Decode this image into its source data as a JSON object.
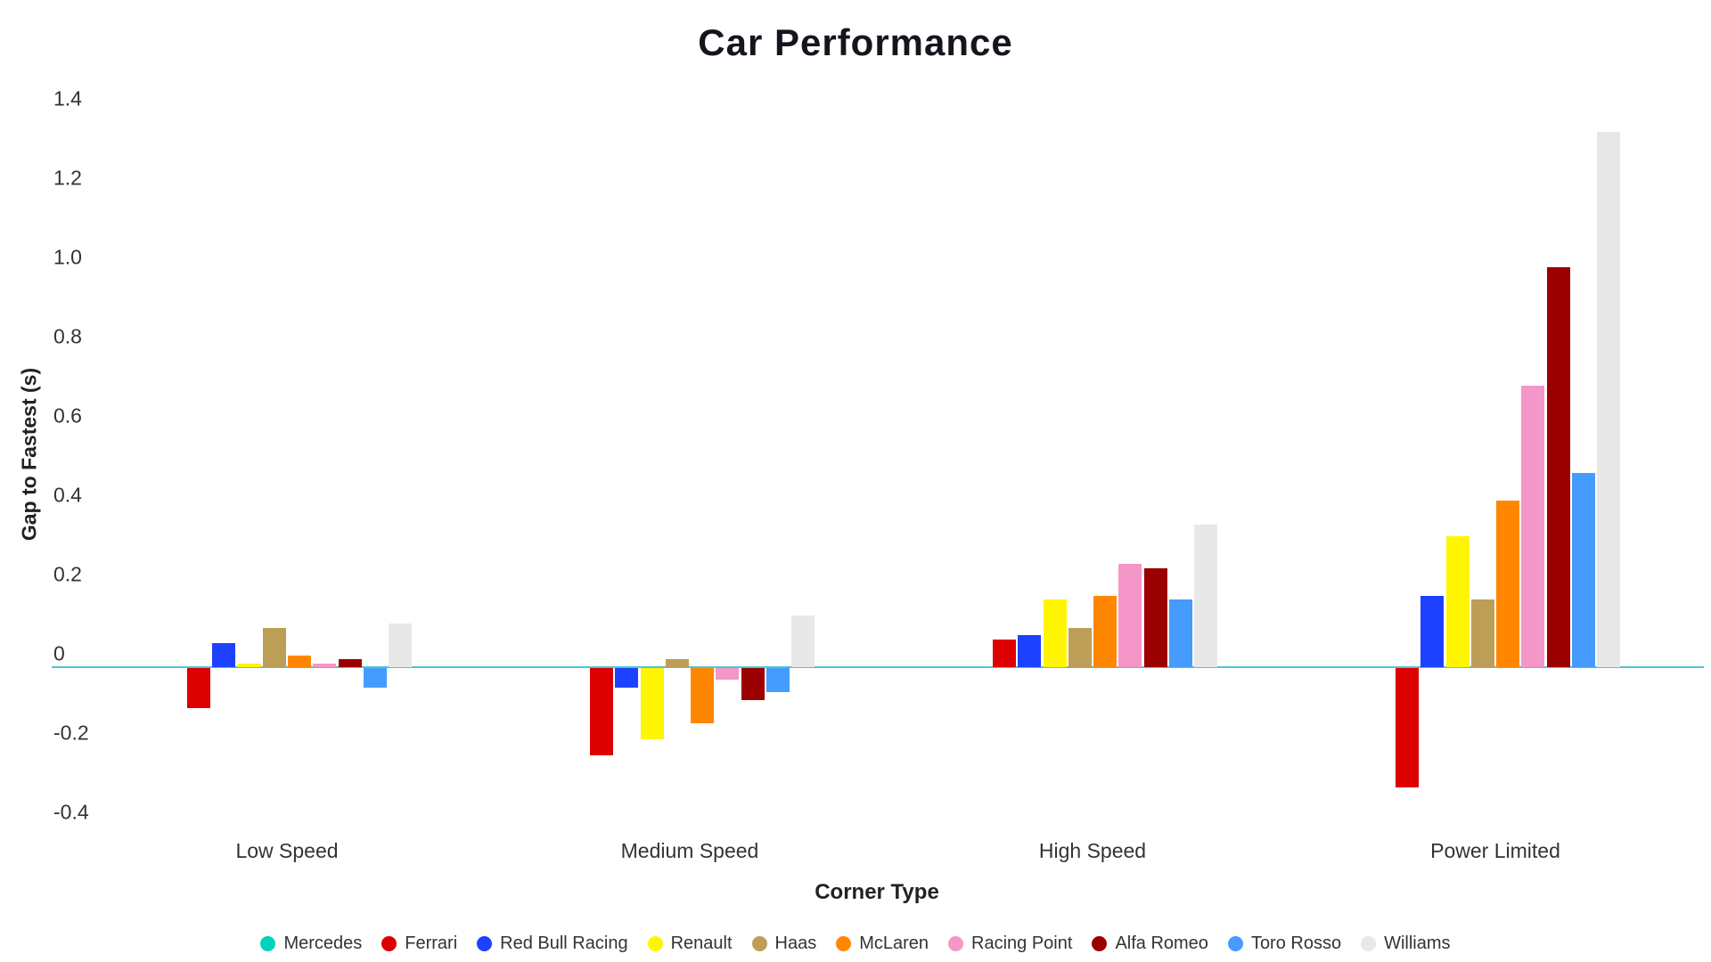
{
  "chart_data": {
    "type": "bar",
    "title": "Car Performance",
    "xlabel": "Corner Type",
    "ylabel": "Gap to Fastest (s)",
    "categories": [
      "Low Speed",
      "Medium Speed",
      "High Speed",
      "Power Limited"
    ],
    "series": [
      {
        "name": "Mercedes",
        "color": "#00D2BE",
        "values": [
          0,
          0,
          0,
          0
        ]
      },
      {
        "name": "Ferrari",
        "color": "#DC0000",
        "values": [
          -0.1,
          -0.22,
          0.07,
          -0.3
        ]
      },
      {
        "name": "Red Bull Racing",
        "color": "#1E41FF",
        "values": [
          0.06,
          -0.05,
          0.08,
          0.18
        ]
      },
      {
        "name": "Renault",
        "color": "#FFF500",
        "values": [
          0.01,
          -0.18,
          0.17,
          0.33
        ]
      },
      {
        "name": "Haas",
        "color": "#BD9E57",
        "values": [
          0.1,
          0.02,
          0.1,
          0.17
        ]
      },
      {
        "name": "McLaren",
        "color": "#FF8700",
        "values": [
          0.03,
          -0.14,
          0.18,
          0.42
        ]
      },
      {
        "name": "Racing Point",
        "color": "#F596C8",
        "values": [
          0.01,
          -0.03,
          0.26,
          0.71
        ]
      },
      {
        "name": "Alfa Romeo",
        "color": "#9B0000",
        "values": [
          0.02,
          -0.08,
          0.25,
          1.01
        ]
      },
      {
        "name": "Toro Rosso",
        "color": "#469BFF",
        "values": [
          -0.05,
          -0.06,
          0.17,
          0.49
        ]
      },
      {
        "name": "Williams",
        "color": "#E8E8E8",
        "values": [
          0.11,
          0.13,
          0.36,
          1.35
        ]
      }
    ],
    "y_ticks": [
      "1.4",
      "1.2",
      "1.0",
      "0.8",
      "0.6",
      "0.4",
      "0.2",
      "0",
      "-0.2",
      "-0.4"
    ],
    "ylim": [
      -0.42,
      1.49
    ],
    "grid": false,
    "zero_line_color": "#4BC8D1",
    "legend_position": "bottom",
    "note": "Mercedes gap is 0 in every corner type; it is drawn as the teal baseline spanning the full chart width."
  }
}
